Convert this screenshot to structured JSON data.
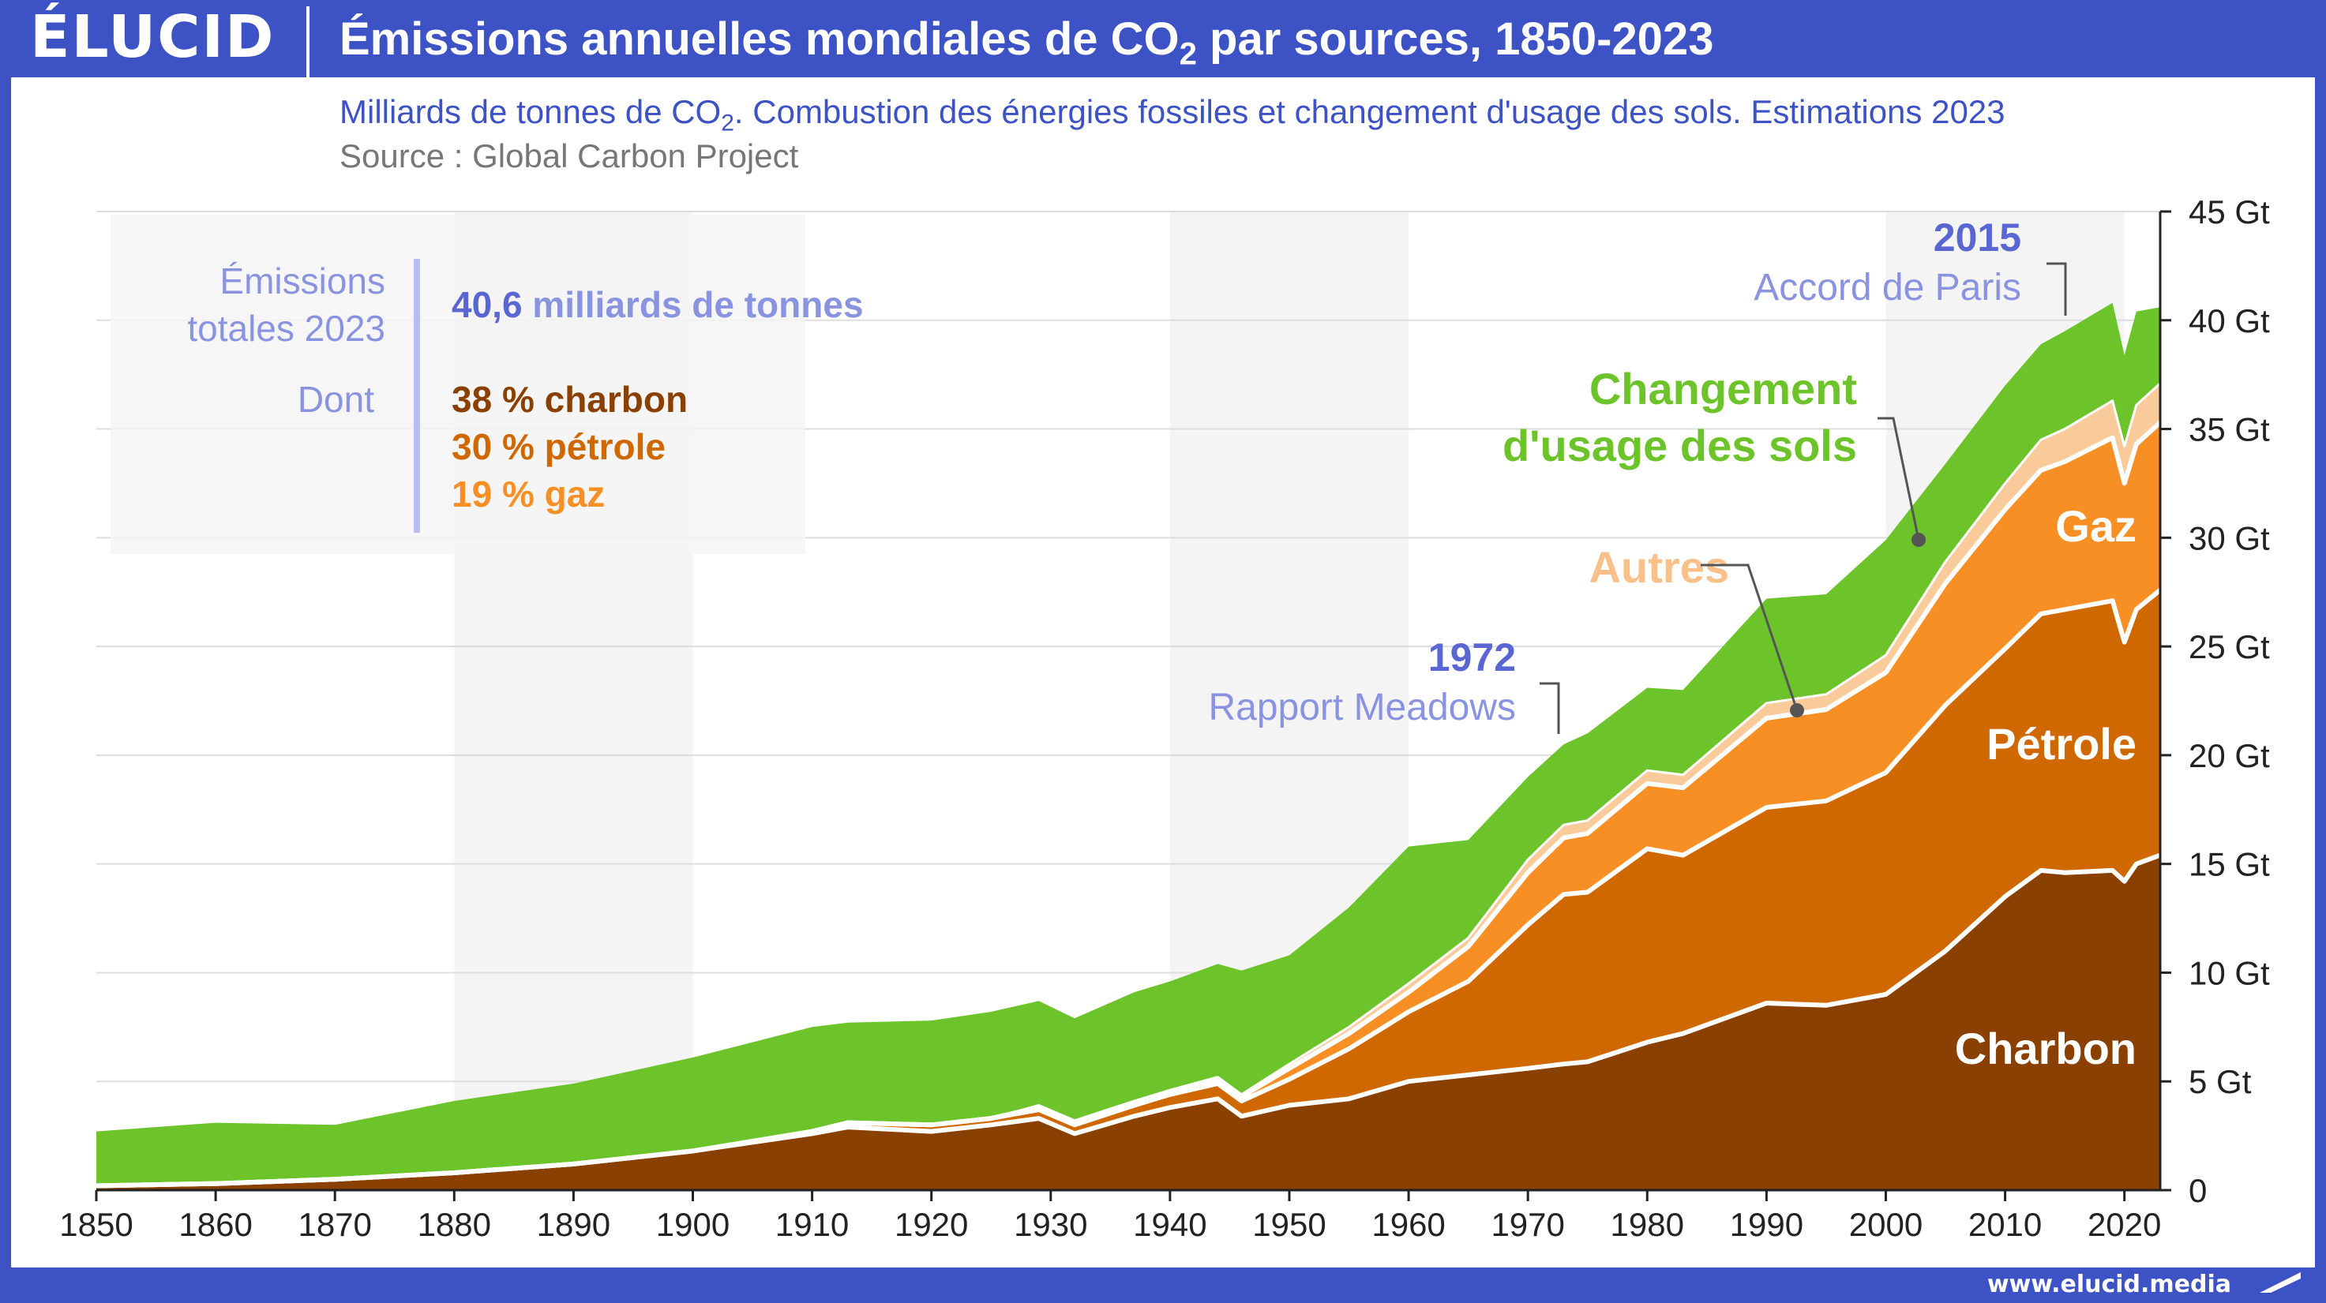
{
  "header": {
    "logo": "ÉLUCID",
    "title_main": "Émissions annuelles mondiales de CO",
    "title_sub": "2",
    "title_end": " par sources, 1850-2023"
  },
  "subtitle": {
    "main": "Milliards de tonnes de CO",
    "sub": "2",
    "end": ". Combustion des énergies fossiles et changement d'usage des sols. Estimations 2023"
  },
  "source": "Source : Global Carbon Project",
  "footer": {
    "url": "www.elucid.media"
  },
  "info_box": {
    "total_label_line1": "Émissions",
    "total_label_line2": "totales 2023",
    "total_value": "40,6",
    "total_text": " milliards de tonnes",
    "dont_label": "Dont",
    "coal_share": "38 % charbon",
    "oil_share": "30 % pétrole",
    "gas_share": "19 % gaz"
  },
  "annotations": {
    "paris_year": "2015",
    "paris_text": "Accord de Paris",
    "meadows_year": "1972",
    "meadows_text": "Rapport Meadows"
  },
  "colors": {
    "coal": "#8a4000",
    "oil": "#d06800",
    "gas": "#f78f24",
    "other": "#f9cb9b",
    "land_use": "#6cc42a",
    "accent": "#3d52c4",
    "accent_light": "#8a93e0"
  },
  "chart_data": {
    "type": "area",
    "stacked": true,
    "title": "Émissions annuelles mondiales de CO2 par sources, 1850-2023",
    "ylabel": "Milliards de tonnes de CO2",
    "xlim": [
      1850,
      2023
    ],
    "ylim": [
      0,
      45
    ],
    "x_ticks": [
      1850,
      1860,
      1870,
      1880,
      1890,
      1900,
      1910,
      1920,
      1930,
      1940,
      1950,
      1960,
      1970,
      1980,
      1990,
      2000,
      2010,
      2020
    ],
    "y_ticks": [
      0,
      5,
      10,
      15,
      20,
      25,
      30,
      35,
      40,
      45
    ],
    "y_tick_labels": [
      "0",
      "5 Gt",
      "10 Gt",
      "15 Gt",
      "20 Gt",
      "25 Gt",
      "30 Gt",
      "35 Gt",
      "40 Gt",
      "45 Gt"
    ],
    "grid": true,
    "x": [
      1850,
      1860,
      1870,
      1880,
      1890,
      1900,
      1910,
      1913,
      1920,
      1925,
      1929,
      1932,
      1937,
      1940,
      1944,
      1946,
      1950,
      1955,
      1960,
      1965,
      1970,
      1973,
      1975,
      1980,
      1983,
      1990,
      1995,
      2000,
      2005,
      2010,
      2013,
      2015,
      2019,
      2020,
      2021,
      2023
    ],
    "series": [
      {
        "name": "Charbon",
        "values": [
          0.2,
          0.3,
          0.5,
          0.8,
          1.2,
          1.8,
          2.6,
          2.9,
          2.7,
          3.0,
          3.3,
          2.6,
          3.4,
          3.8,
          4.2,
          3.4,
          3.9,
          4.2,
          5.0,
          5.3,
          5.6,
          5.8,
          5.9,
          6.8,
          7.2,
          8.6,
          8.5,
          9.0,
          11.0,
          13.5,
          14.7,
          14.6,
          14.7,
          14.2,
          15.0,
          15.4
        ]
      },
      {
        "name": "Pétrole",
        "values": [
          0.0,
          0.0,
          0.0,
          0.0,
          0.0,
          0.0,
          0.1,
          0.2,
          0.3,
          0.3,
          0.4,
          0.4,
          0.5,
          0.6,
          0.7,
          0.7,
          1.2,
          2.3,
          3.2,
          4.3,
          6.6,
          7.8,
          7.8,
          8.9,
          8.2,
          9.0,
          9.4,
          10.2,
          11.3,
          11.4,
          11.8,
          12.1,
          12.4,
          11.0,
          11.7,
          12.2
        ]
      },
      {
        "name": "Gaz",
        "values": [
          0.0,
          0.0,
          0.0,
          0.0,
          0.0,
          0.0,
          0.0,
          0.0,
          0.0,
          0.0,
          0.1,
          0.1,
          0.1,
          0.1,
          0.2,
          0.2,
          0.5,
          0.7,
          0.9,
          1.6,
          2.4,
          2.6,
          2.7,
          3.0,
          3.1,
          4.1,
          4.2,
          4.6,
          5.6,
          6.4,
          6.6,
          6.8,
          7.5,
          7.3,
          7.6,
          7.7
        ]
      },
      {
        "name": "Autres",
        "values": [
          0.0,
          0.0,
          0.0,
          0.0,
          0.0,
          0.0,
          0.0,
          0.0,
          0.0,
          0.0,
          0.1,
          0.1,
          0.1,
          0.1,
          0.1,
          0.1,
          0.2,
          0.3,
          0.4,
          0.4,
          0.6,
          0.6,
          0.6,
          0.6,
          0.6,
          0.7,
          0.7,
          0.8,
          1.0,
          1.2,
          1.4,
          1.5,
          1.7,
          1.7,
          1.8,
          1.8
        ]
      },
      {
        "name": "Changement d'usage des sols",
        "values": [
          2.5,
          2.8,
          2.5,
          3.3,
          3.7,
          4.3,
          4.8,
          4.6,
          4.8,
          4.9,
          4.8,
          4.7,
          5.0,
          5.0,
          5.2,
          5.7,
          5.0,
          5.5,
          6.3,
          4.5,
          3.8,
          3.7,
          4.0,
          3.8,
          3.9,
          4.8,
          4.6,
          5.3,
          4.5,
          4.5,
          4.4,
          4.5,
          4.5,
          4.2,
          4.3,
          3.5
        ]
      }
    ]
  }
}
